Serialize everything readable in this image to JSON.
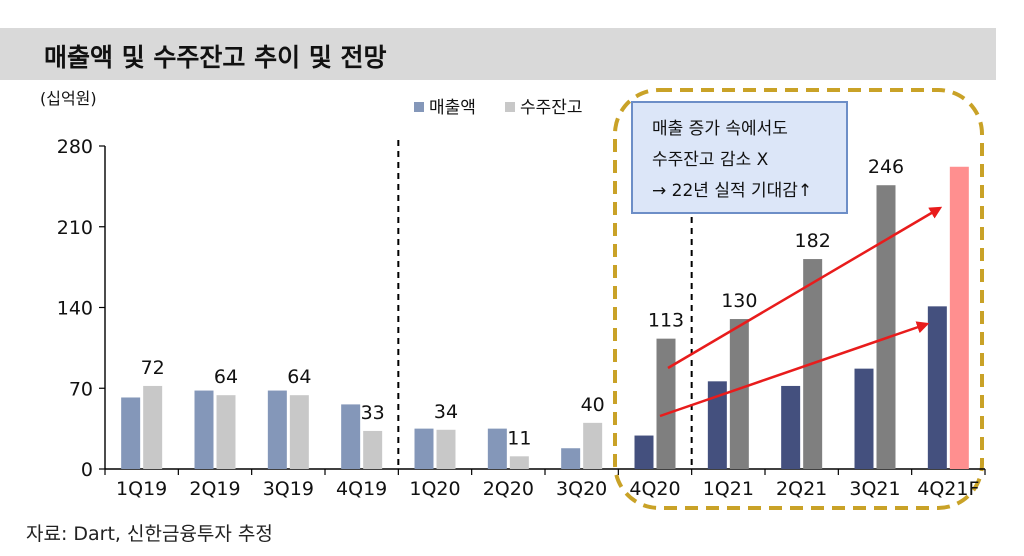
{
  "title": "매출액 및 수주잔고 추이 및 전망",
  "source": "자료: Dart, 신한금융투자 추정",
  "colors": {
    "sales_past": "#8497b9",
    "backlog_past": "#c8c8c8",
    "sales_recent": "#44507e",
    "backlog_recent": "#7f7f7f",
    "forecast": "#ff8f8f",
    "highlight": "#c9a227",
    "arrow": "#e81c1c",
    "callout_fill": "#dce6f8",
    "callout_border": "#6d8ec7"
  },
  "callout": {
    "line1": "매출 증가 속에서도",
    "line2": "수주잔고 감소 X",
    "line3": "→ 22년 실적 기대감↑"
  },
  "chart_data": {
    "type": "bar",
    "title": "매출액 및 수주잔고 추이 및 전망",
    "ylabel": "(십억원)",
    "ylim": [
      0,
      280
    ],
    "yticks": [
      0,
      70,
      140,
      210,
      280
    ],
    "ytick_labels": [
      "0",
      "70",
      "140",
      "210",
      "280"
    ],
    "categories": [
      "1Q19",
      "2Q19",
      "3Q19",
      "4Q19",
      "1Q20",
      "2Q20",
      "3Q20",
      "4Q20",
      "1Q21",
      "2Q21",
      "3Q21",
      "4Q21F"
    ],
    "series": [
      {
        "name": "매출액",
        "values": [
          62,
          68,
          68,
          56,
          35,
          35,
          18,
          29,
          76,
          72,
          87,
          141
        ]
      },
      {
        "name": "수주잔고",
        "values": [
          72,
          64,
          64,
          33,
          34,
          11,
          40,
          113,
          130,
          182,
          246,
          262
        ]
      }
    ],
    "data_labels": [
      {
        "category": "1Q19",
        "text": "72"
      },
      {
        "category": "2Q19",
        "text": "64"
      },
      {
        "category": "3Q19",
        "text": "64"
      },
      {
        "category": "4Q19",
        "text": "33"
      },
      {
        "category": "1Q20",
        "text": "34"
      },
      {
        "category": "2Q20",
        "text": "11"
      },
      {
        "category": "3Q20",
        "text": "40"
      },
      {
        "category": "4Q20",
        "text": "113"
      },
      {
        "category": "1Q21",
        "text": "130"
      },
      {
        "category": "2Q21",
        "text": "182"
      },
      {
        "category": "3Q21",
        "text": "246"
      }
    ],
    "legend": {
      "position": "top-center",
      "entries": [
        "매출액",
        "수주잔고"
      ]
    },
    "dividers_after": [
      "4Q19",
      "4Q20"
    ],
    "forecast_category": "4Q21F",
    "highlight_from": "4Q20",
    "grid": false
  }
}
